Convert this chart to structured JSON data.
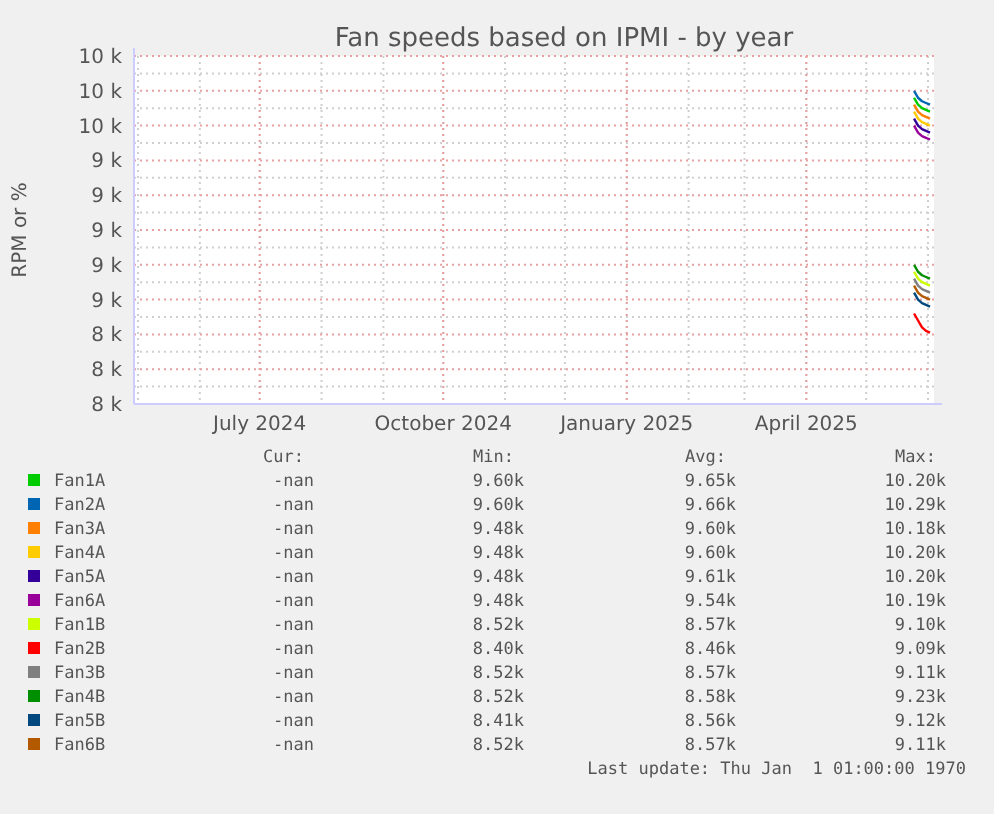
{
  "chart_data": {
    "type": "line",
    "title": "Fan speeds based on IPMI - by year",
    "ylabel": "RPM or %",
    "x": [
      "2025-05-25",
      "2025-05-27",
      "2025-05-29",
      "2025-05-31",
      "2025-06-02"
    ],
    "xlim": [
      "2024-04-29",
      "2025-06-04"
    ],
    "xticks": [
      {
        "value": "2024-07-01",
        "label": "July 2024"
      },
      {
        "value": "2024-10-01",
        "label": "October 2024"
      },
      {
        "value": "2025-01-01",
        "label": "January 2025"
      },
      {
        "value": "2025-04-01",
        "label": "April 2025"
      }
    ],
    "ylim": [
      8000,
      10000
    ],
    "yticks": [
      {
        "value": 8000,
        "label": "8 k"
      },
      {
        "value": 8200,
        "label": "8 k"
      },
      {
        "value": 8400,
        "label": "8 k"
      },
      {
        "value": 8600,
        "label": "9 k"
      },
      {
        "value": 8800,
        "label": "9 k"
      },
      {
        "value": 9000,
        "label": "9 k"
      },
      {
        "value": 9200,
        "label": "9 k"
      },
      {
        "value": 9400,
        "label": "9 k"
      },
      {
        "value": 9600,
        "label": "10 k"
      },
      {
        "value": 9800,
        "label": "10 k"
      },
      {
        "value": 10000,
        "label": "10 k"
      }
    ],
    "grid": true,
    "legend": "bottom",
    "marker": "none",
    "line_style": "solid",
    "series": [
      {
        "name": "Fan1A",
        "color": "#00cc00",
        "values": [
          9760,
          9720,
          9700,
          9690,
          9680
        ]
      },
      {
        "name": "Fan2A",
        "color": "#0066b3",
        "values": [
          9800,
          9760,
          9740,
          9730,
          9720
        ]
      },
      {
        "name": "Fan3A",
        "color": "#ff8000",
        "values": [
          9720,
          9680,
          9660,
          9650,
          9640
        ]
      },
      {
        "name": "Fan4A",
        "color": "#ffcc00",
        "values": [
          9680,
          9640,
          9620,
          9610,
          9600
        ]
      },
      {
        "name": "Fan5A",
        "color": "#330099",
        "values": [
          9640,
          9600,
          9580,
          9570,
          9560
        ]
      },
      {
        "name": "Fan6A",
        "color": "#990099",
        "values": [
          9600,
          9560,
          9540,
          9530,
          9520
        ]
      },
      {
        "name": "Fan1B",
        "color": "#ccff00",
        "values": [
          8760,
          8720,
          8700,
          8690,
          8680
        ]
      },
      {
        "name": "Fan2B",
        "color": "#ff0000",
        "values": [
          8520,
          8480,
          8440,
          8420,
          8410
        ]
      },
      {
        "name": "Fan3B",
        "color": "#808080",
        "values": [
          8720,
          8680,
          8660,
          8650,
          8640
        ]
      },
      {
        "name": "Fan4B",
        "color": "#008f00",
        "values": [
          8800,
          8760,
          8740,
          8730,
          8720
        ]
      },
      {
        "name": "Fan5B",
        "color": "#00487d",
        "values": [
          8640,
          8600,
          8580,
          8570,
          8560
        ]
      },
      {
        "name": "Fan6B",
        "color": "#b35a00",
        "values": [
          8680,
          8640,
          8620,
          8610,
          8600
        ]
      }
    ],
    "annotations": [
      "Cur:",
      "Min:",
      "Avg:",
      "Max:",
      "-nan",
      "9.60k",
      "9.65k",
      "10.20k",
      "-nan",
      "9.60k",
      "9.66k",
      "10.29k",
      "-nan",
      "9.48k",
      "9.60k",
      "10.18k",
      "-nan",
      "9.48k",
      "9.60k",
      "10.20k",
      "-nan",
      "9.48k",
      "9.61k",
      "10.20k",
      "-nan",
      "9.48k",
      "9.54k",
      "10.19k",
      "-nan",
      "8.52k",
      "8.57k",
      "9.10k",
      "-nan",
      "8.40k",
      "8.46k",
      "9.09k",
      "-nan",
      "8.52k",
      "8.57k",
      "9.11k",
      "-nan",
      "8.52k",
      "8.58k",
      "9.23k",
      "-nan",
      "8.41k",
      "8.56k",
      "9.12k",
      "-nan",
      "8.52k",
      "8.57k",
      "9.11k",
      "Last update: Thu Jan  1 01:00:00 1970"
    ]
  }
}
